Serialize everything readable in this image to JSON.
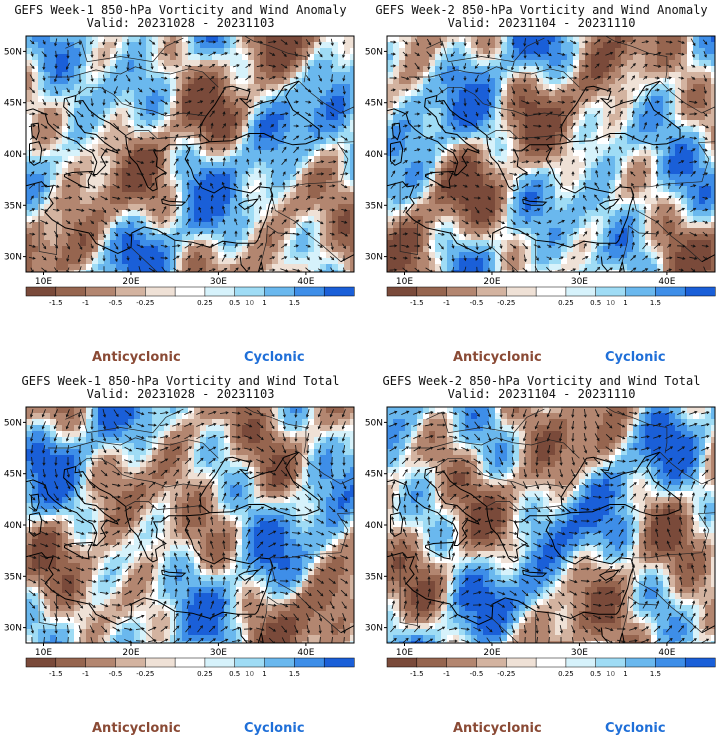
{
  "panels": [
    {
      "id": "p1",
      "title_line1": "GEFS Week-1 850-hPa Vorticity and Wind Anomaly",
      "title_line2": "Valid: 20231028 - 20231103",
      "seed": 11
    },
    {
      "id": "p2",
      "title_line1": "GEFS Week-2 850-hPa Vorticity and Wind Anomaly",
      "title_line2": "Valid: 20231104 - 20231110",
      "seed": 23
    },
    {
      "id": "p3",
      "title_line1": "GEFS Week-1 850-hPa Vorticity and Wind Total",
      "title_line2": "Valid: 20231028 - 20231103",
      "seed": 37
    },
    {
      "id": "p4",
      "title_line1": "GEFS Week-2 850-hPa Vorticity and Wind Total",
      "title_line2": "Valid: 20231104 - 20231110",
      "seed": 53
    }
  ],
  "map": {
    "lat_labels": [
      "50N",
      "45N",
      "40N",
      "35N",
      "30N"
    ],
    "lon_labels": [
      "10E",
      "20E",
      "30E",
      "40E"
    ]
  },
  "colorbar": {
    "tick_labels": [
      "-1.5",
      "-1",
      "-0.5",
      "-0.25",
      "0.25",
      "0.5",
      "1",
      "1.5"
    ],
    "unit_label": "10",
    "colors": [
      "#7a4a3a",
      "#96654f",
      "#b38670",
      "#d3b3a0",
      "#efe1d6",
      "#ffffff",
      "#d6f2fb",
      "#9fdcf5",
      "#6ab8ee",
      "#3e8ee8",
      "#1a5fd8"
    ],
    "anticyclonic_label": "Anticyclonic",
    "cyclonic_label": "Cyclonic",
    "anticyclonic_color": "#8a4a35",
    "cyclonic_color": "#1f6fd8"
  }
}
